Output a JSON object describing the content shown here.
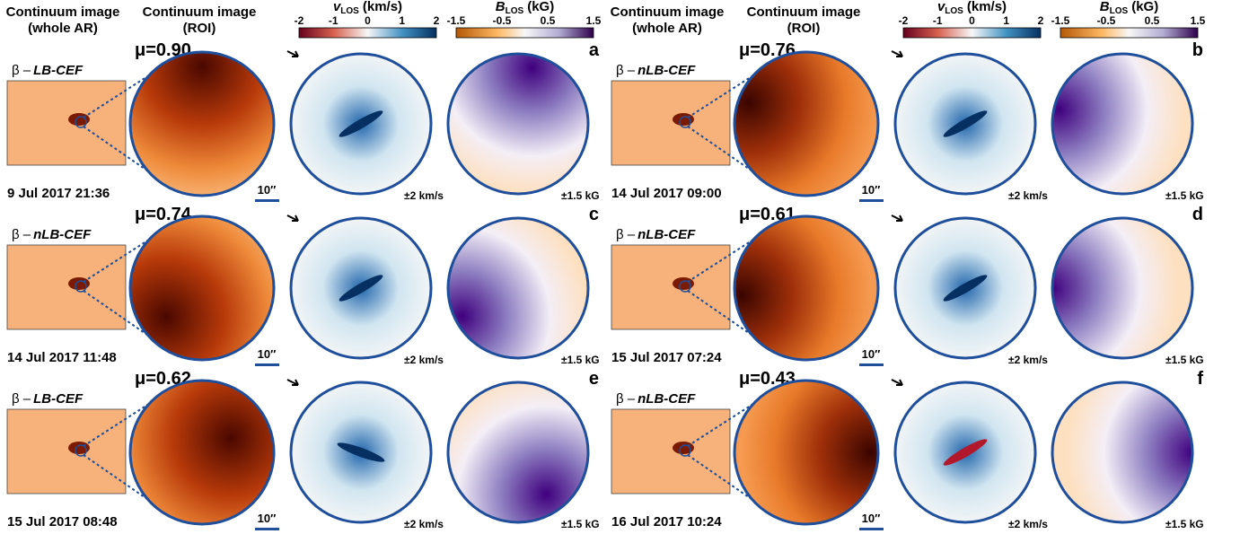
{
  "headers": {
    "whole_ar": [
      "Continuum image",
      "(whole AR)"
    ],
    "roi": [
      "Continuum image",
      "(ROI)"
    ]
  },
  "colorbars": {
    "vlos": {
      "symbol": "v",
      "subscript": "LOS",
      "unit": "(km/s)",
      "ticks": [
        -2,
        -1,
        0,
        1,
        2
      ]
    },
    "blos": {
      "symbol": "B",
      "subscript": "LOS",
      "unit": "(kG)",
      "ticks": [
        -1.5,
        -0.5,
        0.5,
        1.5
      ]
    }
  },
  "scale_bar": "10″",
  "vlos_range": "±2 km/s",
  "blos_range": "±1.5 kG",
  "class_prefix": "β –",
  "panels": [
    {
      "label": "a",
      "mu": "μ=0.90",
      "class": "LB-CEF",
      "date": "9 Jul 2017 21:36"
    },
    {
      "label": "b",
      "mu": "μ=0.76",
      "class": "nLB-CEF",
      "date": "14 Jul 2017 09:00"
    },
    {
      "label": "c",
      "mu": "μ=0.74",
      "class": "nLB-CEF",
      "date": "14 Jul 2017 11:48"
    },
    {
      "label": "d",
      "mu": "μ=0.61",
      "class": "nLB-CEF",
      "date": "15 Jul 2017 07:24"
    },
    {
      "label": "e",
      "mu": "μ=0.62",
      "class": "LB-CEF",
      "date": "15 Jul 2017 08:48"
    },
    {
      "label": "f",
      "mu": "μ=0.43",
      "class": "nLB-CEF",
      "date": "16 Jul 2017 10:24"
    }
  ]
}
